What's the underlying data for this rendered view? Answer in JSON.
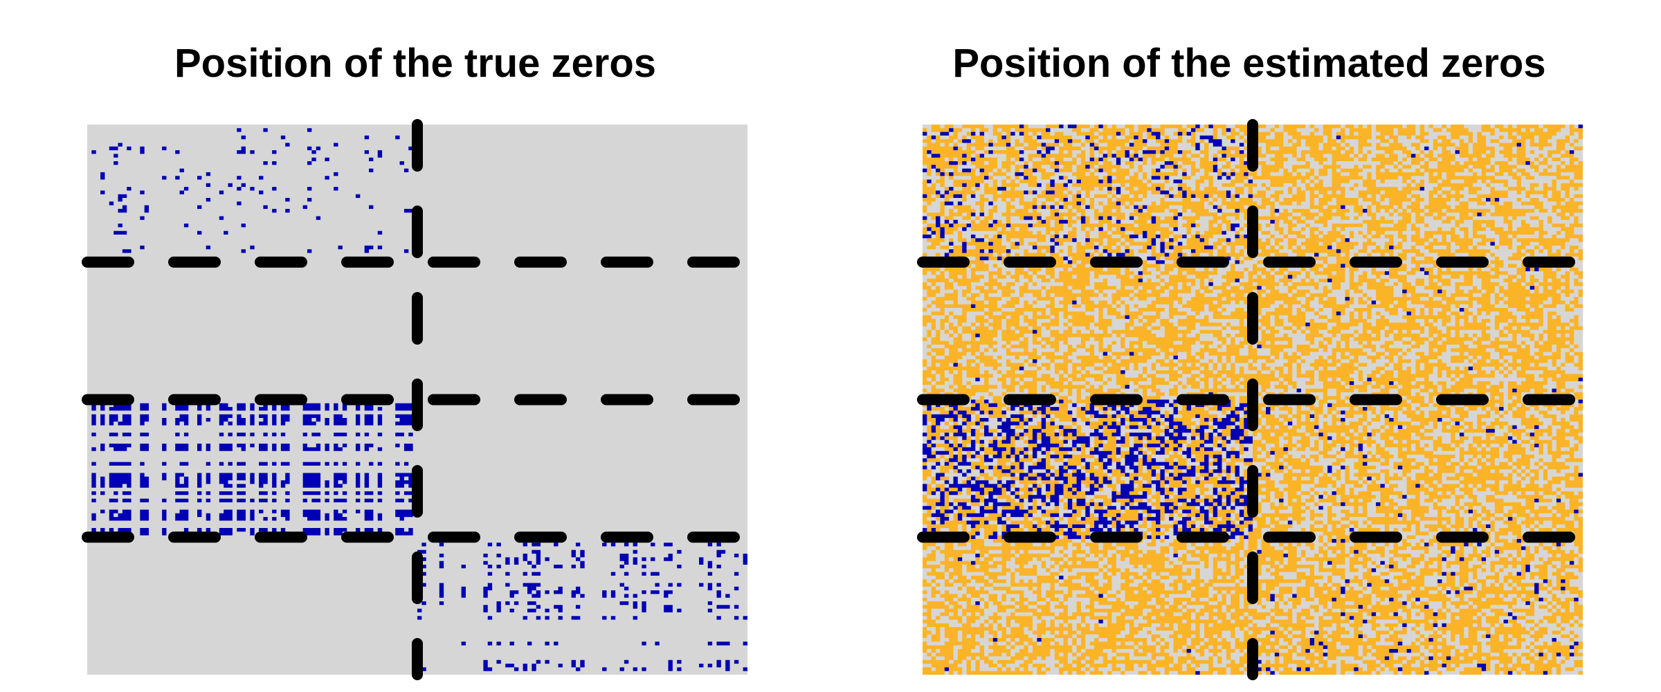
{
  "chart_data": [
    {
      "type": "heatmap",
      "title": "Position of the true zeros",
      "xlabel": "",
      "ylabel": "",
      "grid": false,
      "legend": "none",
      "matrix_size": [
        150,
        150
      ],
      "row_block_boundaries": [
        37.5,
        75,
        112.5
      ],
      "col_block_boundaries": [
        75
      ],
      "colors": {
        "background": "#d6d6d6",
        "zero": "#0000b4",
        "divider": "#000000"
      },
      "zero_density_by_block": {
        "rows_0_37_cols_0_75": 0.06,
        "rows_0_37_cols_75_150": 0.0,
        "rows_37_75_cols_all": 0.0,
        "rows_75_112_cols_0_75": 0.45,
        "rows_75_112_cols_75_150": 0.0,
        "rows_112_150_cols_0_75": 0.0,
        "rows_112_150_cols_75_150": 0.2
      }
    },
    {
      "type": "heatmap",
      "title": "Position of the estimated zeros",
      "xlabel": "",
      "ylabel": "",
      "grid": false,
      "legend": "none",
      "matrix_size": [
        150,
        150
      ],
      "row_block_boundaries": [
        37.5,
        75,
        112.5
      ],
      "col_block_boundaries": [
        75
      ],
      "colors": {
        "background": "#d6d6d6",
        "estimated": "#fbb427",
        "zero": "#0000b4",
        "divider": "#000000"
      },
      "estimated_fraction": 0.6,
      "zero_density_by_block": {
        "rows_0_37_cols_0_75": 0.12,
        "rows_0_37_cols_75_150": 0.01,
        "rows_37_75_cols_all": 0.005,
        "rows_75_112_cols_0_75": 0.35,
        "rows_75_112_cols_75_150": 0.02,
        "rows_112_150_cols_0_75": 0.005,
        "rows_112_150_cols_75_150": 0.04
      }
    }
  ]
}
